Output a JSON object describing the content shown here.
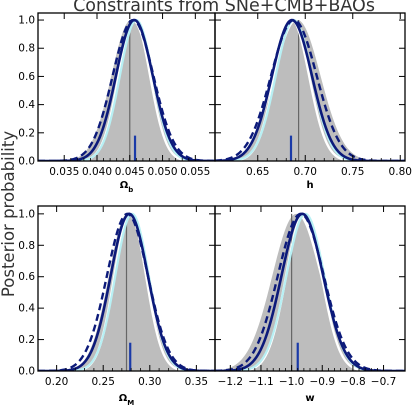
{
  "figure": {
    "title": "Constraints from SNe+CMB+BAOs",
    "ylabel": "Posterior probability"
  },
  "colors": {
    "fill": "#bdbdbd",
    "frame": "#000000",
    "truth": "#666666",
    "solid": "#0c1a7a",
    "dashed": "#0c1a7a",
    "cyan": "#b8f0f4",
    "white": "#ffffff",
    "marker": "#1a3aa8"
  },
  "chart_data": [
    {
      "type": "line",
      "xlabel": "Ω_b",
      "xlim": [
        0.031,
        0.058
      ],
      "ylim": [
        0.0,
        1.05
      ],
      "xticks": [
        0.035,
        0.04,
        0.045,
        0.05,
        0.055
      ],
      "xtick_labels": [
        "0.035",
        "0.040",
        "0.045",
        "0.050",
        "0.055"
      ],
      "yticks": [
        0.0,
        0.2,
        0.4,
        0.6,
        0.8,
        1.0
      ],
      "ytick_labels": [
        "0.0",
        "0.2",
        "0.4",
        "0.6",
        "0.8",
        "1.0"
      ],
      "truth": 0.045,
      "marker": 0.0458,
      "curves": {
        "fill": {
          "mu": 0.0452,
          "sigma": 0.003
        },
        "white": {
          "mu": 0.0457,
          "sigma": 0.0024
        },
        "cyan": {
          "mu": 0.046,
          "sigma": 0.0025
        },
        "solid": {
          "mu": 0.0457,
          "sigma": 0.0028
        },
        "dashed": {
          "mu": 0.0455,
          "sigma": 0.0031
        }
      }
    },
    {
      "type": "line",
      "xlabel": "h",
      "xlim": [
        0.605,
        0.805
      ],
      "ylim": [
        0.0,
        1.05
      ],
      "xticks": [
        0.65,
        0.7,
        0.75,
        0.8
      ],
      "xtick_labels": [
        "0.65",
        "0.70",
        "0.75",
        "0.80"
      ],
      "yticks": [
        0.0,
        0.2,
        0.4,
        0.6,
        0.8,
        1.0
      ],
      "ytick_labels": [],
      "truth": 0.693,
      "marker": 0.685,
      "curves": {
        "fill": {
          "mu": 0.692,
          "sigma": 0.024
        },
        "white": {
          "mu": 0.686,
          "sigma": 0.018
        },
        "cyan": {
          "mu": 0.688,
          "sigma": 0.019
        },
        "solid": {
          "mu": 0.686,
          "sigma": 0.021
        },
        "dashed": {
          "mu": 0.688,
          "sigma": 0.024
        }
      }
    },
    {
      "type": "line",
      "xlabel": "Ω_M",
      "xlim": [
        0.18,
        0.37
      ],
      "ylim": [
        0.0,
        1.05
      ],
      "xticks": [
        0.2,
        0.25,
        0.3,
        0.35
      ],
      "xtick_labels": [
        "0.20",
        "0.25",
        "0.30",
        "0.35"
      ],
      "yticks": [
        0.0,
        0.2,
        0.4,
        0.6,
        0.8,
        1.0
      ],
      "ytick_labels": [
        "0.0",
        "0.2",
        "0.4",
        "0.6",
        "0.8",
        "1.0"
      ],
      "truth": 0.275,
      "marker": 0.279,
      "curves": {
        "fill": {
          "mu": 0.276,
          "sigma": 0.02
        },
        "white": {
          "mu": 0.279,
          "sigma": 0.017
        },
        "cyan": {
          "mu": 0.281,
          "sigma": 0.018
        },
        "solid": {
          "mu": 0.278,
          "sigma": 0.02
        },
        "dashed": {
          "mu": 0.276,
          "sigma": 0.022
        }
      }
    },
    {
      "type": "line",
      "xlabel": "w",
      "xlim": [
        -1.25,
        -0.63
      ],
      "ylim": [
        0.0,
        1.05
      ],
      "xticks": [
        -1.2,
        -1.1,
        -1.0,
        -0.9,
        -0.8,
        -0.7
      ],
      "xtick_labels": [
        "−1.2",
        "−1.1",
        "−1.0",
        "−0.9",
        "−0.8",
        "−0.7"
      ],
      "yticks": [
        0.0,
        0.2,
        0.4,
        0.6,
        0.8,
        1.0
      ],
      "ytick_labels": [],
      "truth": -1.0,
      "marker": -0.98,
      "curves": {
        "fill": {
          "mu": -0.985,
          "sigma": 0.078
        },
        "white": {
          "mu": -0.96,
          "sigma": 0.058
        },
        "cyan": {
          "mu": -0.955,
          "sigma": 0.062
        },
        "solid": {
          "mu": -0.965,
          "sigma": 0.068
        },
        "dashed": {
          "mu": -0.97,
          "sigma": 0.075
        }
      }
    }
  ]
}
